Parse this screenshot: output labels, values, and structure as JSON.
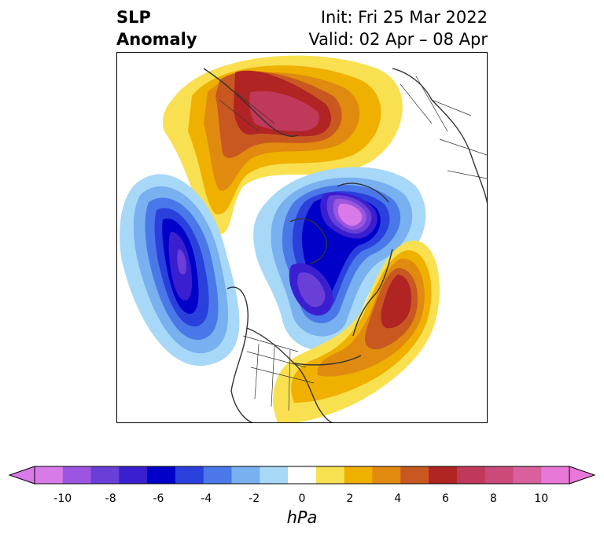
{
  "title": {
    "variable_line1": "SLP",
    "variable_line2": "Anomaly",
    "init_line": "Init: Fri 25 Mar 2022",
    "valid_line": "Valid: 02 Apr – 08 Apr"
  },
  "colorbar": {
    "units": "hPa",
    "ticks": [
      "-10",
      "-8",
      "-6",
      "-4",
      "-2",
      "0",
      "2",
      "4",
      "6",
      "8",
      "10"
    ],
    "colors": [
      "#d87ae8",
      "#9c55e0",
      "#6a3fd8",
      "#3a1fd0",
      "#0000c8",
      "#2a40dd",
      "#4a78e8",
      "#78b0f0",
      "#a8d8f8",
      "#ffffff",
      "#f8e050",
      "#f0b000",
      "#e08a10",
      "#c85820",
      "#b02424",
      "#c0385a",
      "#cc4a7a",
      "#d8609c",
      "#e878d8"
    ],
    "range": [
      -10,
      10
    ]
  }
}
